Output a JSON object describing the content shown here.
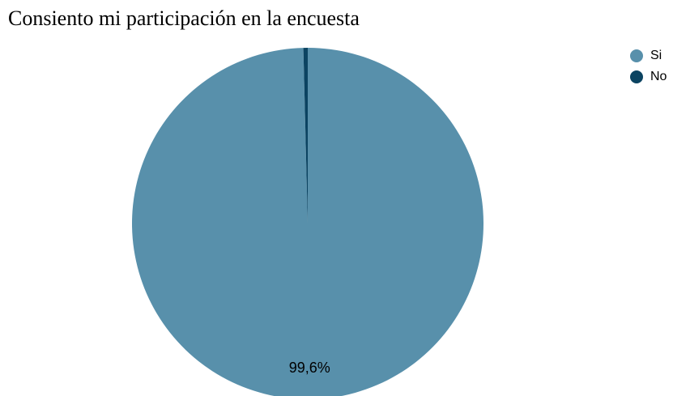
{
  "chart_data": {
    "type": "pie",
    "title": "Consiento mi participación en la encuesta",
    "categories": [
      "Si",
      "No"
    ],
    "values": [
      99.6,
      0.4
    ],
    "data_labels": [
      "99,6%",
      ""
    ],
    "colors": [
      "#5890ab",
      "#0b4361"
    ],
    "legend_position": "top-right",
    "start_angle": "12 o'clock",
    "direction": "clockwise"
  }
}
